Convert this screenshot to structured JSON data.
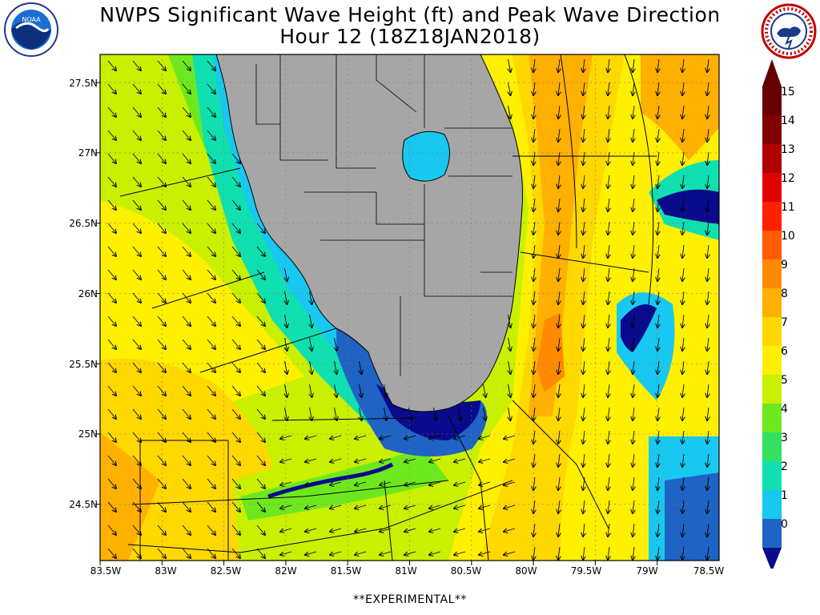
{
  "header": {
    "title_line1": "NWPS Significant Wave Height (ft) and Peak Wave Direction",
    "title_line2": "Hour 12 (18Z18JAN2018)"
  },
  "logos": {
    "left": {
      "name": "noaa-logo",
      "text": "NOAA"
    },
    "right": {
      "name": "nws-logo",
      "text": "NATIONAL WEATHER SERVICE"
    }
  },
  "map": {
    "lat_labels": [
      "27.5N",
      "27N",
      "26.5N",
      "26N",
      "25.5N",
      "25N",
      "24.5N"
    ],
    "lon_labels": [
      "83.5W",
      "83W",
      "82.5W",
      "82W",
      "81.5W",
      "81W",
      "80.5W",
      "80W",
      "79.5W",
      "79W",
      "78.5W"
    ],
    "lon_range": [
      -83.5,
      -78.5
    ],
    "lat_range": [
      24.1,
      27.7
    ],
    "arrow_direction": "southward",
    "land_color": "#a6a6a6"
  },
  "colorbar": {
    "labels": [
      "15",
      "14",
      "13",
      "12",
      "11",
      "10",
      "9",
      "8",
      "7",
      "6",
      "5",
      "4",
      "3",
      "2",
      "1",
      "0"
    ],
    "colors": [
      "#0a0a8c",
      "#1f63c4",
      "#18c8f0",
      "#10e0b0",
      "#33e060",
      "#6ee81e",
      "#c8f000",
      "#fff000",
      "#ffd800",
      "#ffb000",
      "#ff8a00",
      "#ff5a00",
      "#ff2000",
      "#e00000",
      "#b00000",
      "#800000",
      "#660000"
    ]
  },
  "footer": {
    "text": "**EXPERIMENTAL**"
  }
}
